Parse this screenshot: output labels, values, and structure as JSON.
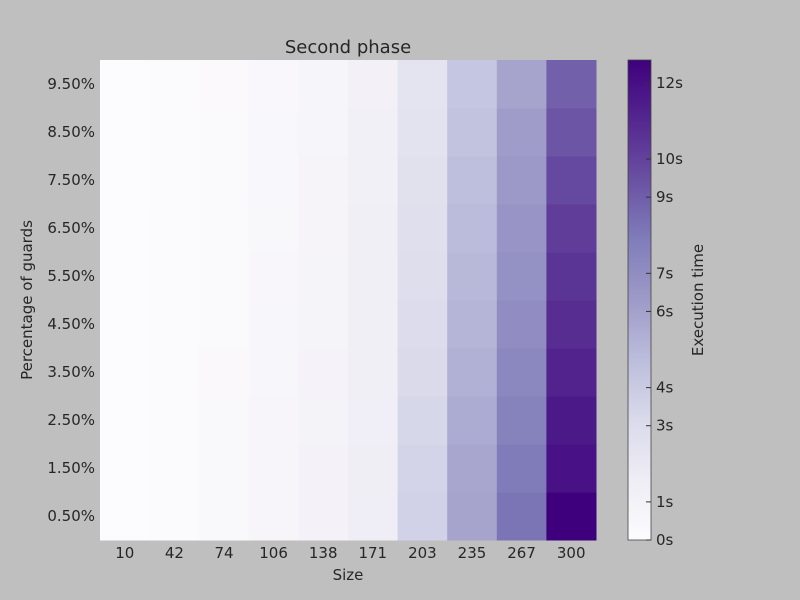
{
  "chart_data": {
    "type": "heatmap",
    "title": "Second phase",
    "xlabel": "Size",
    "ylabel": "Percentage of guards",
    "x": [
      "10",
      "42",
      "74",
      "106",
      "138",
      "171",
      "203",
      "235",
      "267",
      "300"
    ],
    "y": [
      "0.50%",
      "1.50%",
      "2.50%",
      "3.50%",
      "4.50%",
      "5.50%",
      "6.50%",
      "7.50%",
      "8.50%",
      "9.50%"
    ],
    "values": [
      [
        0.05,
        0.12,
        0.35,
        0.65,
        1.0,
        1.55,
        3.6,
        5.9,
        8.2,
        12.6
      ],
      [
        0.05,
        0.12,
        0.35,
        0.63,
        0.98,
        1.5,
        3.45,
        5.75,
        7.9,
        11.9
      ],
      [
        0.05,
        0.12,
        0.35,
        0.62,
        0.92,
        1.45,
        3.3,
        5.55,
        7.6,
        11.6
      ],
      [
        0.05,
        0.1,
        0.3,
        0.58,
        0.85,
        1.4,
        3.15,
        5.3,
        7.3,
        11.2
      ],
      [
        0.04,
        0.1,
        0.28,
        0.55,
        0.82,
        1.35,
        3.0,
        5.1,
        7.0,
        10.8
      ],
      [
        0.04,
        0.1,
        0.28,
        0.52,
        0.8,
        1.32,
        2.85,
        4.95,
        6.8,
        10.5
      ],
      [
        0.04,
        0.1,
        0.25,
        0.5,
        0.78,
        1.3,
        2.75,
        4.8,
        6.6,
        10.2
      ],
      [
        0.04,
        0.08,
        0.22,
        0.48,
        0.75,
        1.25,
        2.6,
        4.6,
        6.4,
        9.8
      ],
      [
        0.03,
        0.08,
        0.2,
        0.45,
        0.72,
        1.2,
        2.5,
        4.4,
        6.2,
        9.3
      ],
      [
        0.03,
        0.07,
        0.18,
        0.42,
        0.68,
        1.15,
        2.4,
        4.25,
        5.9,
        8.9
      ]
    ],
    "colorbar": {
      "label": "Execution time",
      "min": 0,
      "max": 12.6,
      "ticks": [
        {
          "value": 0,
          "label": "0s"
        },
        {
          "value": 1,
          "label": "1s"
        },
        {
          "value": 3,
          "label": "3s"
        },
        {
          "value": 4,
          "label": "4s"
        },
        {
          "value": 6,
          "label": "6s"
        },
        {
          "value": 7,
          "label": "7s"
        },
        {
          "value": 9,
          "label": "9s"
        },
        {
          "value": 10,
          "label": "10s"
        },
        {
          "value": 12,
          "label": "12s"
        }
      ],
      "colormap": "Purples",
      "color_low": "#fcfbfd",
      "color_high": "#3f007d"
    },
    "background_color": "#bfbfbf",
    "grid": false
  }
}
